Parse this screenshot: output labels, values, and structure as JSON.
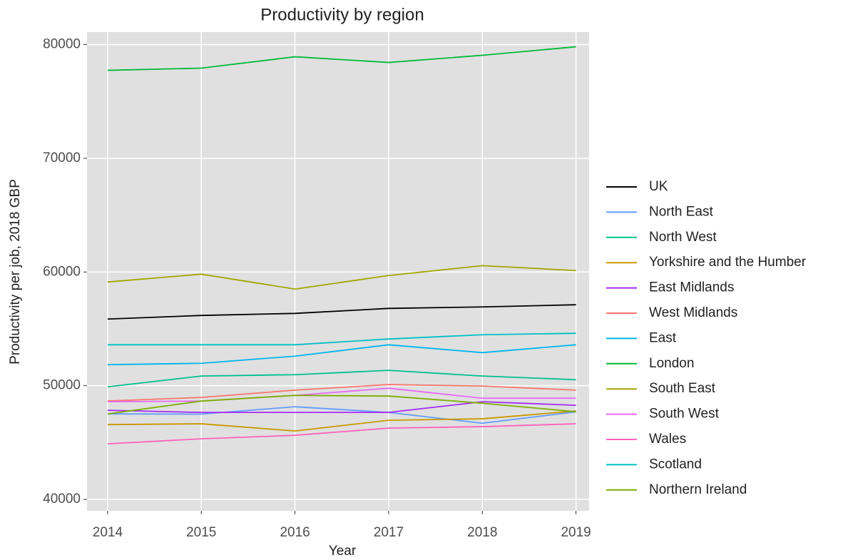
{
  "chart_data": {
    "type": "line",
    "title": "Productivity by region",
    "x_label": "Year",
    "y_label": "Productivity per job, 2018 GBP",
    "x": [
      2014,
      2015,
      2016,
      2017,
      2018,
      2019
    ],
    "xlim": [
      2013.78,
      2019.14
    ],
    "xticks": [
      2014,
      2015,
      2016,
      2017,
      2018,
      2019
    ],
    "ylim": [
      39000,
      81100
    ],
    "yticks": [
      40000,
      50000,
      60000,
      70000,
      80000
    ],
    "grid": true,
    "legend": "right",
    "series": [
      {
        "name": "UK",
        "color": "#000000",
        "values": [
          55860,
          56180,
          56360,
          56800,
          56930,
          57120
        ]
      },
      {
        "name": "North East",
        "color": "#619CFF",
        "values": [
          47520,
          47500,
          48150,
          47650,
          46700,
          47700
        ]
      },
      {
        "name": "North West",
        "color": "#00C08B",
        "values": [
          49900,
          50850,
          50970,
          51350,
          50850,
          50530
        ]
      },
      {
        "name": "Yorkshire and the Humber",
        "color": "#C99800",
        "values": [
          46580,
          46650,
          46020,
          46960,
          47090,
          47780
        ]
      },
      {
        "name": "East Midlands",
        "color": "#A52BF5",
        "values": [
          47840,
          47650,
          47650,
          47650,
          48590,
          48280
        ]
      },
      {
        "name": "West Midlands",
        "color": "#F8766D",
        "values": [
          48650,
          48970,
          49610,
          50100,
          49970,
          49610
        ]
      },
      {
        "name": "East",
        "color": "#00B4F0",
        "values": [
          51850,
          51970,
          52600,
          53600,
          52910,
          53600
        ]
      },
      {
        "name": "London",
        "color": "#00BA38",
        "values": [
          77740,
          77930,
          78930,
          78430,
          79060,
          79810
        ]
      },
      {
        "name": "South East",
        "color": "#A3A500",
        "values": [
          59120,
          59810,
          58500,
          59690,
          60560,
          60130
        ]
      },
      {
        "name": "South West",
        "color": "#E76BF3",
        "values": [
          48590,
          48650,
          49150,
          49780,
          48900,
          48900
        ]
      },
      {
        "name": "Wales",
        "color": "#FF62BC",
        "values": [
          44890,
          45330,
          45640,
          46270,
          46400,
          46650
        ]
      },
      {
        "name": "Scotland",
        "color": "#00BFC4",
        "values": [
          53600,
          53600,
          53600,
          54110,
          54480,
          54610
        ]
      },
      {
        "name": "Northern Ireland",
        "color": "#7CAE00",
        "values": [
          47520,
          48650,
          49150,
          49090,
          48460,
          47710
        ]
      }
    ]
  }
}
